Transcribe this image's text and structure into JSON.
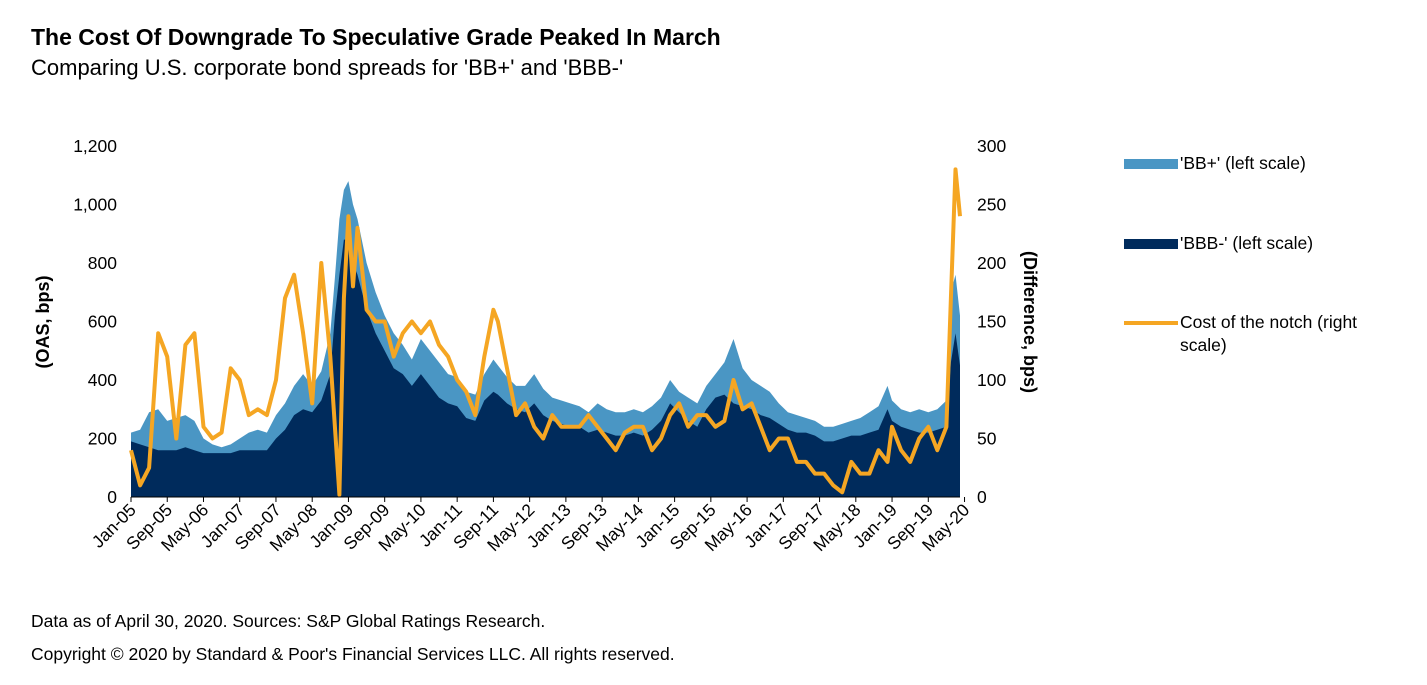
{
  "title": "The Cost Of Downgrade To Speculative Grade Peaked In March",
  "subtitle": "Comparing U.S. corporate bond spreads for 'BB+' and 'BBB-'",
  "footer": {
    "source": "Data as of April 30, 2020. Sources: S&P Global Ratings Research.",
    "copyright": "Copyright © 2020 by Standard & Poor's Financial Services LLC. All rights reserved."
  },
  "colors": {
    "bb": "#4a96c4",
    "bbb": "#002b5c",
    "cost": "#f5a623"
  },
  "chart_data": {
    "type": "area",
    "title": "The Cost Of Downgrade To Speculative Grade Peaked In March",
    "ylabel_left": "(OAS, bps)",
    "ylabel_right": "(Difference, bps)",
    "ylim_left": [
      0,
      1200
    ],
    "ylim_right": [
      0,
      300
    ],
    "yticks_left": [
      "0",
      "200",
      "400",
      "600",
      "800",
      "1,000",
      "1,200"
    ],
    "yticks_right": [
      "0",
      "50",
      "100",
      "150",
      "200",
      "250",
      "300"
    ],
    "xticks": [
      "Jan-05",
      "Sep-05",
      "May-06",
      "Jan-07",
      "Sep-07",
      "May-08",
      "Jan-09",
      "Sep-09",
      "May-10",
      "Jan-11",
      "Sep-11",
      "May-12",
      "Jan-13",
      "Sep-13",
      "May-14",
      "Jan-15",
      "Sep-15",
      "May-16",
      "Jan-17",
      "Sep-17",
      "May-18",
      "Jan-19",
      "Sep-19",
      "May-20"
    ],
    "x": [
      "2005-01",
      "2005-03",
      "2005-05",
      "2005-07",
      "2005-09",
      "2005-11",
      "2006-01",
      "2006-03",
      "2006-05",
      "2006-07",
      "2006-09",
      "2006-11",
      "2007-01",
      "2007-03",
      "2007-05",
      "2007-07",
      "2007-09",
      "2007-11",
      "2008-01",
      "2008-03",
      "2008-05",
      "2008-07",
      "2008-09",
      "2008-10",
      "2008-11",
      "2008-12",
      "2009-01",
      "2009-02",
      "2009-03",
      "2009-05",
      "2009-07",
      "2009-09",
      "2009-11",
      "2010-01",
      "2010-03",
      "2010-05",
      "2010-07",
      "2010-09",
      "2010-11",
      "2011-01",
      "2011-03",
      "2011-05",
      "2011-07",
      "2011-09",
      "2011-10",
      "2011-12",
      "2012-02",
      "2012-04",
      "2012-06",
      "2012-08",
      "2012-10",
      "2012-12",
      "2013-02",
      "2013-04",
      "2013-06",
      "2013-08",
      "2013-10",
      "2013-12",
      "2014-02",
      "2014-04",
      "2014-06",
      "2014-08",
      "2014-10",
      "2014-12",
      "2015-02",
      "2015-04",
      "2015-06",
      "2015-08",
      "2015-10",
      "2015-12",
      "2016-02",
      "2016-04",
      "2016-06",
      "2016-08",
      "2016-10",
      "2016-12",
      "2017-02",
      "2017-04",
      "2017-06",
      "2017-08",
      "2017-10",
      "2017-12",
      "2018-02",
      "2018-04",
      "2018-06",
      "2018-08",
      "2018-10",
      "2018-12",
      "2019-01",
      "2019-03",
      "2019-05",
      "2019-07",
      "2019-09",
      "2019-11",
      "2020-01",
      "2020-02",
      "2020-03",
      "2020-04"
    ],
    "series": [
      {
        "name": "'BB+' (left scale)",
        "kind": "area",
        "values": [
          220,
          230,
          290,
          300,
          260,
          270,
          280,
          260,
          200,
          180,
          170,
          180,
          200,
          220,
          230,
          220,
          280,
          320,
          380,
          420,
          380,
          430,
          560,
          750,
          950,
          1050,
          1080,
          1000,
          950,
          800,
          700,
          620,
          560,
          520,
          470,
          540,
          500,
          460,
          420,
          410,
          360,
          350,
          420,
          470,
          450,
          410,
          380,
          380,
          420,
          370,
          340,
          330,
          320,
          310,
          290,
          320,
          300,
          290,
          290,
          300,
          290,
          310,
          340,
          400,
          360,
          340,
          320,
          380,
          420,
          460,
          540,
          440,
          400,
          380,
          360,
          320,
          290,
          280,
          270,
          260,
          240,
          240,
          250,
          260,
          270,
          290,
          310,
          380,
          330,
          300,
          290,
          300,
          290,
          300,
          330,
          700,
          760,
          620
        ]
      },
      {
        "name": "'BBB-' (left scale)",
        "kind": "area",
        "values": [
          190,
          180,
          170,
          160,
          160,
          160,
          170,
          160,
          150,
          150,
          150,
          150,
          160,
          160,
          160,
          160,
          200,
          230,
          280,
          300,
          290,
          330,
          420,
          620,
          760,
          880,
          880,
          800,
          760,
          640,
          560,
          500,
          440,
          420,
          380,
          420,
          380,
          340,
          320,
          310,
          270,
          260,
          330,
          360,
          350,
          320,
          300,
          290,
          320,
          280,
          260,
          250,
          240,
          240,
          220,
          230,
          220,
          210,
          210,
          220,
          210,
          230,
          260,
          320,
          290,
          260,
          240,
          300,
          340,
          350,
          320,
          310,
          300,
          280,
          270,
          250,
          230,
          220,
          220,
          210,
          190,
          190,
          200,
          210,
          210,
          220,
          230,
          300,
          260,
          240,
          230,
          220,
          220,
          230,
          240,
          460,
          560,
          450
        ]
      },
      {
        "name": "Cost of the notch (right scale)",
        "kind": "line",
        "values": [
          40,
          10,
          25,
          140,
          120,
          50,
          130,
          140,
          60,
          50,
          55,
          110,
          100,
          70,
          75,
          70,
          100,
          170,
          190,
          140,
          80,
          200,
          120,
          60,
          2,
          170,
          240,
          180,
          230,
          160,
          150,
          150,
          120,
          140,
          150,
          140,
          150,
          130,
          120,
          100,
          90,
          70,
          120,
          160,
          150,
          110,
          70,
          80,
          60,
          50,
          70,
          60,
          60,
          60,
          70,
          60,
          50,
          40,
          55,
          60,
          60,
          40,
          50,
          70,
          80,
          60,
          70,
          70,
          60,
          65,
          100,
          75,
          80,
          60,
          40,
          50,
          50,
          30,
          30,
          20,
          20,
          10,
          4,
          30,
          20,
          20,
          40,
          30,
          60,
          40,
          30,
          50,
          60,
          40,
          60,
          170,
          280,
          240
        ]
      }
    ],
    "legend_position": "right",
    "grid": false
  }
}
